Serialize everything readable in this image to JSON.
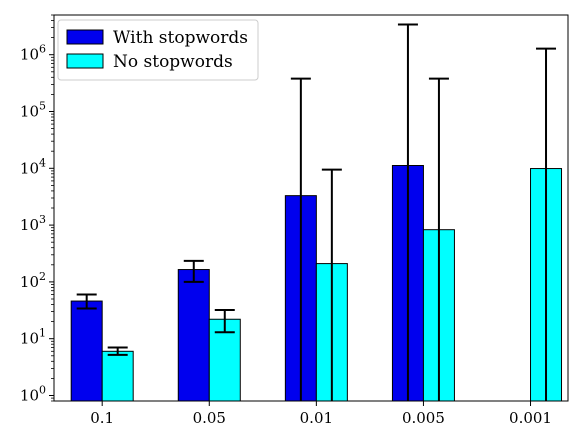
{
  "chart_data": {
    "type": "bar",
    "title": "",
    "xlabel": "",
    "ylabel": "",
    "yscale": "log",
    "ylim": [
      0.8,
      5000000
    ],
    "y_ticks": [
      {
        "value": 1,
        "base": "10",
        "exp": "0"
      },
      {
        "value": 10,
        "base": "10",
        "exp": "1"
      },
      {
        "value": 100,
        "base": "10",
        "exp": "2"
      },
      {
        "value": 1000,
        "base": "10",
        "exp": "3"
      },
      {
        "value": 10000,
        "base": "10",
        "exp": "4"
      },
      {
        "value": 100000,
        "base": "10",
        "exp": "5"
      },
      {
        "value": 1000000,
        "base": "10",
        "exp": "6"
      }
    ],
    "categories": [
      "0.1",
      "0.05",
      "0.01",
      "0.005",
      "0.001"
    ],
    "legend_position": "top-left",
    "grid": false,
    "series": [
      {
        "name": "With stopwords",
        "color": "#0000ee",
        "values": [
          46,
          165,
          3300,
          11200,
          null
        ],
        "err_low": [
          34,
          100,
          0.8,
          0.8,
          null
        ],
        "err_high": [
          60,
          235,
          380000,
          3400000,
          null
        ]
      },
      {
        "name": "No stopwords",
        "color": "#00ffff",
        "values": [
          6,
          22,
          210,
          830,
          9900
        ],
        "err_low": [
          5.2,
          13,
          0.8,
          0.8,
          0.8
        ],
        "err_high": [
          7,
          32,
          9500,
          380000,
          1280000
        ]
      }
    ]
  }
}
